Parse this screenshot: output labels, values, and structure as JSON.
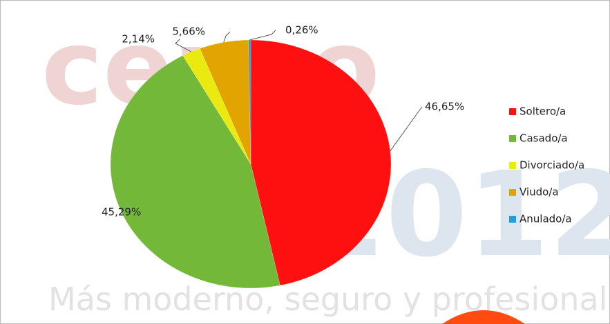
{
  "chart_data": {
    "type": "pie",
    "categories": [
      "Soltero/a",
      "Casado/a",
      "Divorciado/a",
      "Viudo/a",
      "Anulado/a"
    ],
    "values": [
      46.65,
      45.29,
      2.14,
      5.66,
      0.26
    ],
    "value_labels": [
      "46,65%",
      "45,29%",
      "2,14%",
      "5,66%",
      "0,26%"
    ],
    "colors": [
      "#ff1010",
      "#74b83a",
      "#eaea10",
      "#e2a400",
      "#2a9ad8"
    ],
    "legend": "right",
    "watermark": [
      "censo",
      "2012",
      "Más moderno, seguro y profesional"
    ]
  }
}
